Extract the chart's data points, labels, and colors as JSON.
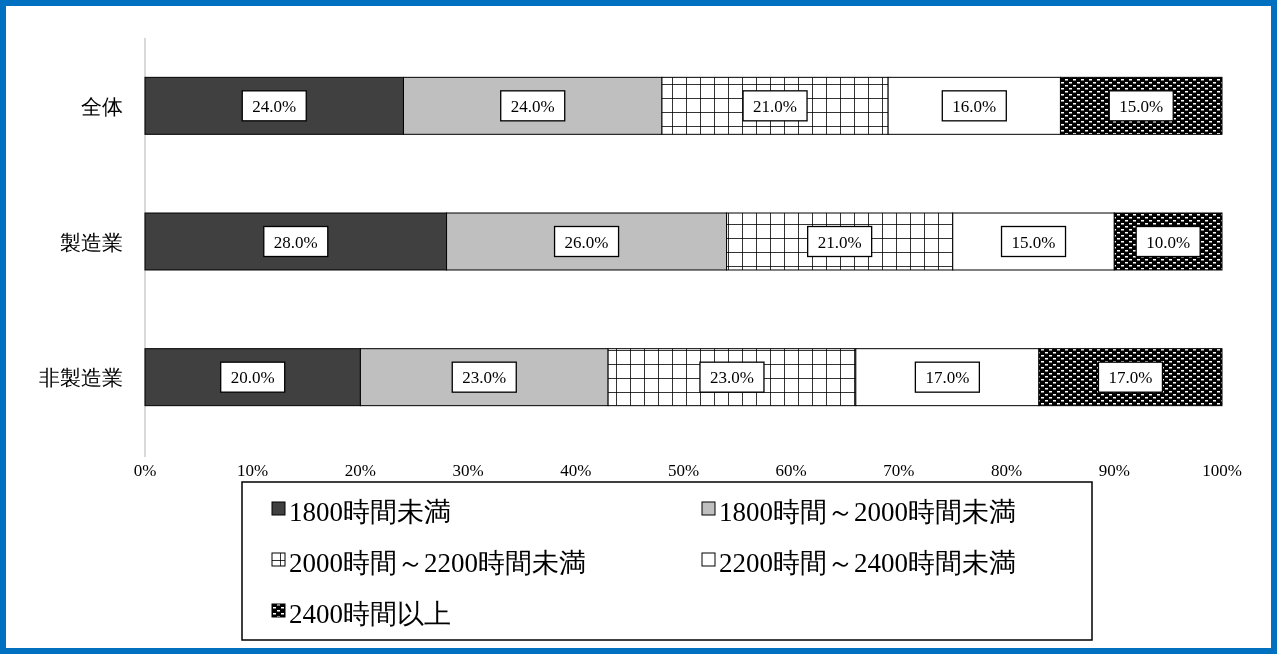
{
  "chart_data": {
    "type": "bar",
    "orientation": "horizontal",
    "stacked": true,
    "categories": [
      "全体",
      "製造業",
      "非製造業"
    ],
    "series": [
      {
        "name": "1800時間未満",
        "color": "#404040",
        "values": [
          24,
          28,
          20
        ],
        "value_labels": [
          "24.0%",
          "28.0%",
          "20.0%"
        ]
      },
      {
        "name": "1800時間～2000時間未満",
        "color": "#bfbfbf",
        "values": [
          24,
          26,
          23
        ],
        "value_labels": [
          "24.0%",
          "26.0%",
          "23.0%"
        ]
      },
      {
        "name": "2000時間～2200時間未満",
        "color": "#000000",
        "values": [
          21,
          21,
          23
        ],
        "value_labels": [
          "21.0%",
          "21.0%",
          "23.0%"
        ]
      },
      {
        "name": "2200時間～2400時間未満",
        "color": "#ffffff",
        "values": [
          16,
          15,
          17
        ],
        "value_labels": [
          "16.0%",
          "15.0%",
          "17.0%"
        ]
      },
      {
        "name": "2400時間以上",
        "color": "#000000",
        "values": [
          15,
          10,
          17
        ],
        "value_labels": [
          "15.0%",
          "10.0%",
          "17.0%"
        ]
      }
    ],
    "xlim": [
      0,
      100
    ],
    "xticks": [
      {
        "value": 0,
        "label": "0%"
      },
      {
        "value": 10,
        "label": "10%"
      },
      {
        "value": 20,
        "label": "20%"
      },
      {
        "value": 30,
        "label": "30%"
      },
      {
        "value": 40,
        "label": "40%"
      },
      {
        "value": 50,
        "label": "50%"
      },
      {
        "value": 60,
        "label": "60%"
      },
      {
        "value": 70,
        "label": "70%"
      },
      {
        "value": 80,
        "label": "80%"
      },
      {
        "value": 90,
        "label": "90%"
      },
      {
        "value": 100,
        "label": "100%"
      }
    ],
    "legend": "bottom"
  }
}
